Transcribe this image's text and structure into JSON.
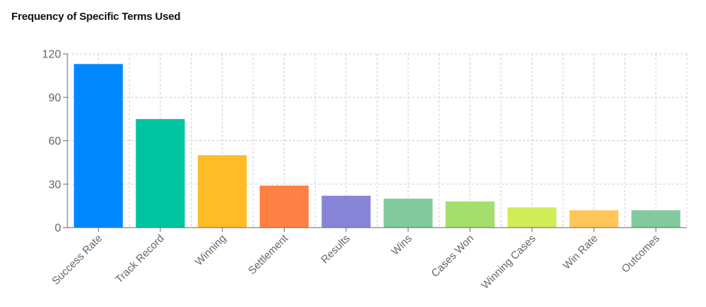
{
  "chart_data": {
    "type": "bar",
    "title": "Frequency of Specific Terms Used",
    "xlabel": "",
    "ylabel": "",
    "ylim": [
      0,
      120
    ],
    "yticks": [
      0,
      30,
      60,
      90,
      120
    ],
    "grid": true,
    "categories": [
      "Success Rate",
      "Track Record",
      "Winning",
      "Settlement",
      "Results",
      "Wins",
      "Cases Won",
      "Winning Cases",
      "Win Rate",
      "Outcomes"
    ],
    "values": [
      113,
      75,
      50,
      29,
      22,
      20,
      18,
      14,
      12,
      12
    ],
    "colors": [
      "#0088FE",
      "#00C49F",
      "#FFBB28",
      "#FF8042",
      "#8884D8",
      "#82CA9D",
      "#A4DE6C",
      "#D0ED57",
      "#FFC658",
      "#82CA9D"
    ]
  }
}
